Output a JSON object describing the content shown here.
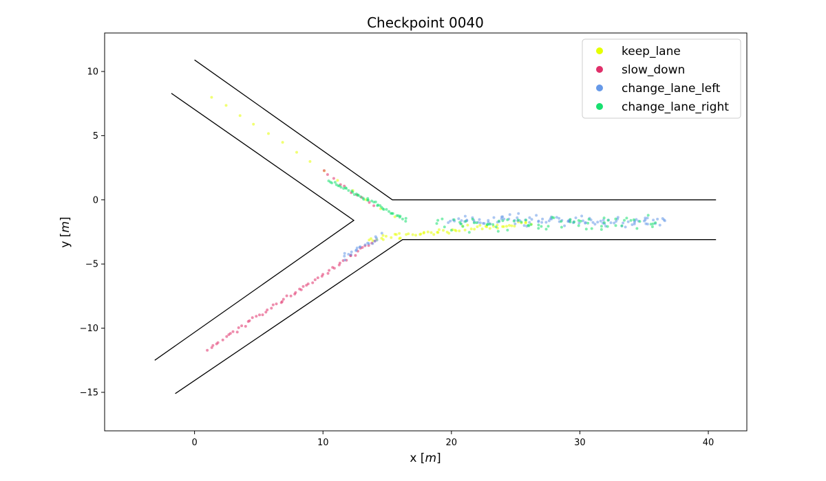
{
  "chart_data": {
    "type": "scatter",
    "title": "Checkpoint 0040",
    "xlabel": "x",
    "xlabel_unit": "m",
    "ylabel": "y",
    "ylabel_unit": "m",
    "xlim": [
      -7,
      43
    ],
    "ylim": [
      -18,
      13
    ],
    "x_ticks": [
      0,
      10,
      20,
      30,
      40
    ],
    "y_ticks": [
      10,
      5,
      0,
      -5,
      -10,
      -15
    ],
    "x_tick_labels": [
      "0",
      "10",
      "20",
      "30",
      "40"
    ],
    "y_tick_labels": [
      "10",
      "5",
      "0",
      "−5",
      "−10",
      "−15"
    ],
    "grid": false,
    "legend_position": "top-right",
    "road_boundaries": [
      {
        "points": [
          [
            0,
            10.9
          ],
          [
            15.4,
            0
          ],
          [
            40.6,
            0
          ]
        ]
      },
      {
        "points": [
          [
            -1.8,
            8.3
          ],
          [
            12.4,
            -1.6
          ],
          [
            -3.1,
            -12.5
          ]
        ]
      },
      {
        "points": [
          [
            -1.5,
            -15.1
          ],
          [
            16.2,
            -3.1
          ],
          [
            40.6,
            -3.1
          ]
        ]
      }
    ],
    "series": [
      {
        "name": "keep_lane",
        "color": "#e5ff00",
        "paths": [
          {
            "from": [
              1.3,
              8.1
            ],
            "to": [
              15.6,
              -1.4
            ],
            "count": 14,
            "spread": 0.12
          },
          {
            "from": [
              13.5,
              -3.0
            ],
            "to": [
              26,
              -1.8
            ],
            "count": 60,
            "spread": 0.35
          }
        ]
      },
      {
        "name": "slow_down",
        "color": "#e0306a",
        "paths": [
          {
            "from": [
              1.1,
              -11.6
            ],
            "to": [
              14.0,
              -3.2
            ],
            "count": 60,
            "spread": 0.22
          },
          {
            "from": [
              10.0,
              2.2
            ],
            "to": [
              14.0,
              -0.5
            ],
            "count": 10,
            "spread": 0.25
          }
        ]
      },
      {
        "name": "change_lane_left",
        "color": "#6699e8",
        "paths": [
          {
            "from": [
              20,
              -1.7
            ],
            "to": [
              36.5,
              -1.6
            ],
            "count": 110,
            "spread": 0.7
          },
          {
            "from": [
              11.5,
              -4.5
            ],
            "to": [
              14.5,
              -2.8
            ],
            "count": 20,
            "spread": 0.3
          }
        ]
      },
      {
        "name": "change_lane_right",
        "color": "#18e070",
        "paths": [
          {
            "from": [
              10.5,
              1.5
            ],
            "to": [
              16.5,
              -1.6
            ],
            "count": 45,
            "spread": 0.2
          },
          {
            "from": [
              19,
              -1.9
            ],
            "to": [
              36,
              -1.8
            ],
            "count": 70,
            "spread": 0.8
          }
        ]
      }
    ]
  }
}
